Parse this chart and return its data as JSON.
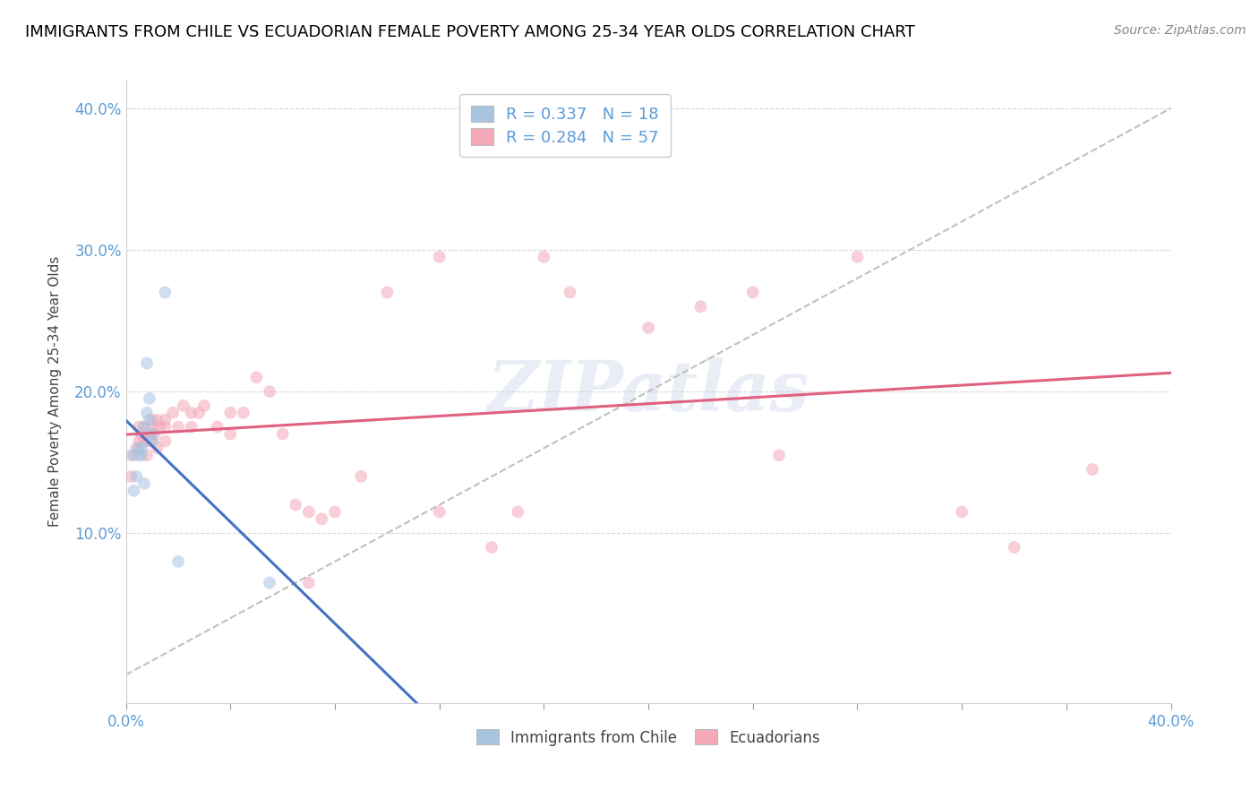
{
  "title": "IMMIGRANTS FROM CHILE VS ECUADORIAN FEMALE POVERTY AMONG 25-34 YEAR OLDS CORRELATION CHART",
  "source": "Source: ZipAtlas.com",
  "ylabel": "Female Poverty Among 25-34 Year Olds",
  "legend_entries": [
    {
      "label": "R = 0.337   N = 18",
      "color": "#a8c4e0"
    },
    {
      "label": "R = 0.284   N = 57",
      "color": "#f4a8b8"
    }
  ],
  "legend_bottom": [
    "Immigrants from Chile",
    "Ecuadorians"
  ],
  "xlim": [
    0.0,
    0.4
  ],
  "ylim": [
    -0.02,
    0.42
  ],
  "blue_scatter_color": "#a8c4e0",
  "pink_scatter_color": "#f4a8b8",
  "blue_line_color": "#4472c4",
  "pink_line_color": "#e06080",
  "gray_dash_color": "#c0c0c0",
  "axis_tick_color": "#5b9bd5",
  "title_fontsize": 13,
  "source_fontsize": 10,
  "chile_x": [
    0.002,
    0.003,
    0.004,
    0.005,
    0.005,
    0.006,
    0.006,
    0.007,
    0.007,
    0.008,
    0.008,
    0.009,
    0.009,
    0.01,
    0.01,
    0.015,
    0.02,
    0.055
  ],
  "chile_y": [
    0.155,
    0.13,
    0.14,
    0.155,
    0.16,
    0.155,
    0.16,
    0.135,
    0.175,
    0.22,
    0.185,
    0.195,
    0.18,
    0.17,
    0.165,
    0.27,
    0.08,
    0.065
  ],
  "ecuador_x": [
    0.002,
    0.003,
    0.004,
    0.005,
    0.005,
    0.006,
    0.007,
    0.007,
    0.008,
    0.008,
    0.009,
    0.01,
    0.01,
    0.01,
    0.011,
    0.012,
    0.012,
    0.013,
    0.015,
    0.015,
    0.015,
    0.018,
    0.02,
    0.022,
    0.025,
    0.025,
    0.028,
    0.03,
    0.035,
    0.04,
    0.04,
    0.045,
    0.05,
    0.055,
    0.06,
    0.065,
    0.07,
    0.075,
    0.08,
    0.09,
    0.1,
    0.12,
    0.14,
    0.16,
    0.17,
    0.2,
    0.22,
    0.24,
    0.28,
    0.32,
    0.34,
    0.37,
    0.2,
    0.25,
    0.15,
    0.12,
    0.07
  ],
  "ecuador_y": [
    0.14,
    0.155,
    0.16,
    0.175,
    0.165,
    0.17,
    0.175,
    0.165,
    0.155,
    0.165,
    0.17,
    0.175,
    0.18,
    0.165,
    0.17,
    0.16,
    0.18,
    0.175,
    0.18,
    0.165,
    0.175,
    0.185,
    0.175,
    0.19,
    0.185,
    0.175,
    0.185,
    0.19,
    0.175,
    0.185,
    0.17,
    0.185,
    0.21,
    0.2,
    0.17,
    0.12,
    0.115,
    0.11,
    0.115,
    0.14,
    0.27,
    0.115,
    0.09,
    0.295,
    0.27,
    0.245,
    0.26,
    0.27,
    0.295,
    0.115,
    0.09,
    0.145,
    0.37,
    0.155,
    0.115,
    0.295,
    0.065
  ],
  "watermark": "ZIPatlas",
  "dot_size": 100,
  "dot_alpha": 0.55
}
